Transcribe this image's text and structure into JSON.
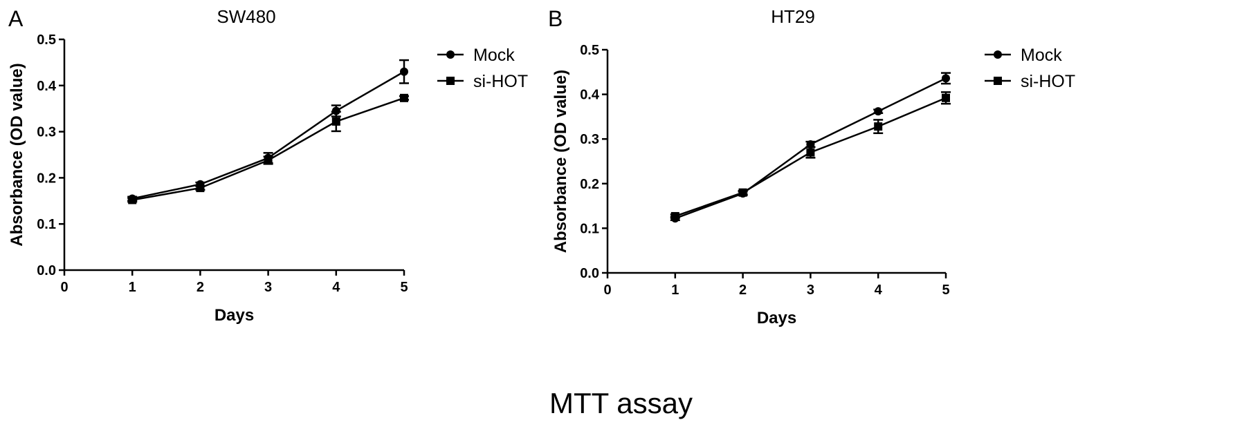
{
  "figure_caption": "MTT assay",
  "chart_data": [
    {
      "type": "line",
      "panel_label": "A",
      "title": "SW480",
      "xlabel": "Days",
      "ylabel": "Absorbance (OD value)",
      "xlim": [
        0,
        5
      ],
      "ylim": [
        0,
        0.5
      ],
      "x_ticks": [
        "0",
        "1",
        "2",
        "3",
        "4",
        "5"
      ],
      "y_ticks": [
        "0.0",
        "0.1",
        "0.2",
        "0.3",
        "0.4",
        "0.5"
      ],
      "grid": false,
      "legend_position": "top-right",
      "x": [
        1,
        2,
        3,
        4,
        5
      ],
      "series": [
        {
          "name": "Mock",
          "marker": "circle",
          "values": [
            0.155,
            0.186,
            0.243,
            0.345,
            0.43
          ],
          "errors": [
            0.004,
            0.004,
            0.011,
            0.012,
            0.025
          ]
        },
        {
          "name": "si-HOT",
          "marker": "square",
          "values": [
            0.152,
            0.178,
            0.238,
            0.322,
            0.373
          ],
          "errors": [
            0.004,
            0.004,
            0.008,
            0.021,
            0.004
          ]
        }
      ]
    },
    {
      "type": "line",
      "panel_label": "B",
      "title": "HT29",
      "xlabel": "Days",
      "ylabel": "Absorbance (OD value)",
      "xlim": [
        0,
        5
      ],
      "ylim": [
        0,
        0.5
      ],
      "x_ticks": [
        "0",
        "1",
        "2",
        "3",
        "4",
        "5"
      ],
      "y_ticks": [
        "0.0",
        "0.1",
        "0.2",
        "0.3",
        "0.4",
        "0.5"
      ],
      "grid": false,
      "legend_position": "top-right",
      "x": [
        1,
        2,
        3,
        4,
        5
      ],
      "series": [
        {
          "name": "Mock",
          "marker": "circle",
          "values": [
            0.122,
            0.178,
            0.288,
            0.362,
            0.436
          ],
          "errors": [
            0.004,
            0.004,
            0.006,
            0.004,
            0.012
          ]
        },
        {
          "name": "si-HOT",
          "marker": "square",
          "values": [
            0.127,
            0.18,
            0.27,
            0.328,
            0.392
          ],
          "errors": [
            0.004,
            0.004,
            0.012,
            0.015,
            0.013
          ]
        }
      ]
    }
  ]
}
